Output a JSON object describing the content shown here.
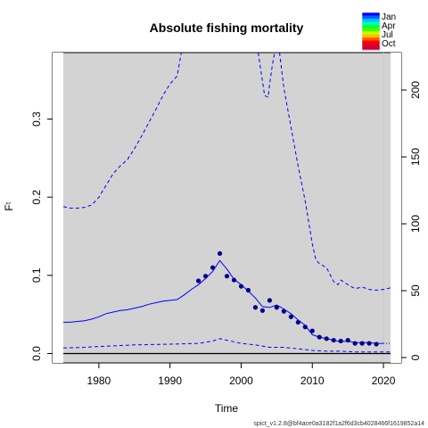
{
  "chart_data": {
    "type": "line",
    "title": "Absolute fishing mortality",
    "xlabel": "Time",
    "ylabel": "F",
    "ylabel_subscript": "t",
    "xlim": [
      1973.5,
      2022.5
    ],
    "ylim": [
      -0.012,
      0.385
    ],
    "x_ticks": [
      1980,
      1990,
      2000,
      2010,
      2020
    ],
    "y_ticks": [
      0.0,
      0.1,
      0.2,
      0.3
    ],
    "y_tick_labels": [
      "0.0",
      "0.1",
      "0.2",
      "0.3"
    ],
    "right_axis": {
      "ylim": [
        -4,
        228
      ],
      "ticks": [
        0,
        50,
        100,
        150,
        200
      ],
      "tick_labels": [
        "0",
        "50",
        "100",
        "150",
        "200"
      ]
    },
    "legend": {
      "placement": "top-right",
      "entries": [
        "Jan",
        "Apr",
        "Jul",
        "Oct"
      ]
    },
    "footer_text": "spict_v1.2.8@bf4ace0a3182f1a2f6d3cb4028466f1619852a14",
    "series": [
      {
        "kind": "estimate",
        "color": "#0000ff",
        "x": [
          1975,
          1976,
          1977,
          1978,
          1979,
          1980,
          1981,
          1982,
          1983,
          1984,
          1985,
          1986,
          1987,
          1988,
          1989,
          1990,
          1991,
          1992,
          1993,
          1994,
          1995,
          1996,
          1997,
          1998,
          1999,
          2000,
          2001,
          2002,
          2003,
          2004,
          2005,
          2006,
          2007,
          2008,
          2009,
          2010,
          2011,
          2012,
          2013,
          2014,
          2015,
          2016,
          2017,
          2018,
          2019,
          2020
        ],
        "y": [
          0.04,
          0.04,
          0.041,
          0.042,
          0.044,
          0.047,
          0.051,
          0.053,
          0.055,
          0.056,
          0.058,
          0.06,
          0.063,
          0.065,
          0.067,
          0.068,
          0.069,
          0.075,
          0.082,
          0.088,
          0.096,
          0.105,
          0.119,
          0.108,
          0.095,
          0.088,
          0.08,
          0.071,
          0.06,
          0.059,
          0.062,
          0.057,
          0.051,
          0.043,
          0.036,
          0.024,
          0.021,
          0.019,
          0.017,
          0.015,
          0.016,
          0.014,
          0.014,
          0.014,
          0.013,
          0.013
        ]
      },
      {
        "kind": "upper-ci",
        "color": "#0000ff",
        "x": [
          1975,
          1976,
          1977,
          1978,
          1979,
          1980,
          1981,
          1982,
          1983,
          1984,
          1985,
          1986,
          1987,
          1988,
          1989,
          1990,
          1991,
          1991.6
        ],
        "y": [
          0.188,
          0.186,
          0.186,
          0.187,
          0.19,
          0.2,
          0.215,
          0.23,
          0.24,
          0.248,
          0.262,
          0.278,
          0.295,
          0.312,
          0.33,
          0.345,
          0.355,
          0.385
        ]
      },
      {
        "kind": "upper-ci",
        "color": "#0000ff",
        "x": [
          2002.4,
          2002.8,
          2003.3,
          2003.8,
          2004.0,
          2004.4,
          2004.7
        ],
        "y": [
          0.385,
          0.36,
          0.33,
          0.328,
          0.345,
          0.37,
          0.385
        ]
      },
      {
        "kind": "upper-ci",
        "color": "#0000ff",
        "x": [
          2005.4,
          2006,
          2007,
          2008,
          2009,
          2010,
          2010.5,
          2011,
          2012,
          2013,
          2013.6,
          2014,
          2015,
          2016,
          2017,
          2018,
          2019,
          2020,
          2021
        ],
        "y": [
          0.385,
          0.34,
          0.29,
          0.24,
          0.195,
          0.14,
          0.12,
          0.115,
          0.11,
          0.092,
          0.088,
          0.094,
          0.088,
          0.083,
          0.085,
          0.082,
          0.081,
          0.082,
          0.084
        ]
      },
      {
        "kind": "lower-ci",
        "color": "#0000ff",
        "x": [
          1975,
          1978,
          1980,
          1985,
          1990,
          1994,
          1996,
          1997,
          1998,
          2000,
          2002,
          2004,
          2006,
          2008,
          2010,
          2012,
          2014,
          2016,
          2018,
          2020,
          2021
        ],
        "y": [
          0.007,
          0.008,
          0.009,
          0.011,
          0.012,
          0.013,
          0.016,
          0.019,
          0.017,
          0.013,
          0.011,
          0.008,
          0.008,
          0.006,
          0.004,
          0.003,
          0.003,
          0.002,
          0.002,
          0.002,
          0.002
        ]
      },
      {
        "kind": "observations",
        "color": "#00008b",
        "x": [
          1994,
          1995,
          1996,
          1997,
          1998,
          1999,
          2000,
          2001,
          2002,
          2003,
          2004,
          2005,
          2006,
          2007,
          2008,
          2009,
          2010,
          2011,
          2012,
          2013,
          2014,
          2015,
          2016,
          2017,
          2018,
          2019
        ],
        "y": [
          0.093,
          0.099,
          0.11,
          0.128,
          0.099,
          0.094,
          0.086,
          0.081,
          0.059,
          0.055,
          0.068,
          0.059,
          0.054,
          0.047,
          0.04,
          0.034,
          0.029,
          0.021,
          0.019,
          0.017,
          0.016,
          0.017,
          0.013,
          0.013,
          0.013,
          0.012
        ]
      },
      {
        "kind": "prediction",
        "color": "#0000ff",
        "x": [
          2020,
          2021
        ],
        "y": [
          0.013,
          0.013
        ]
      }
    ],
    "reference_line": {
      "y": 0.0,
      "color": "#000000"
    },
    "grid": false
  }
}
